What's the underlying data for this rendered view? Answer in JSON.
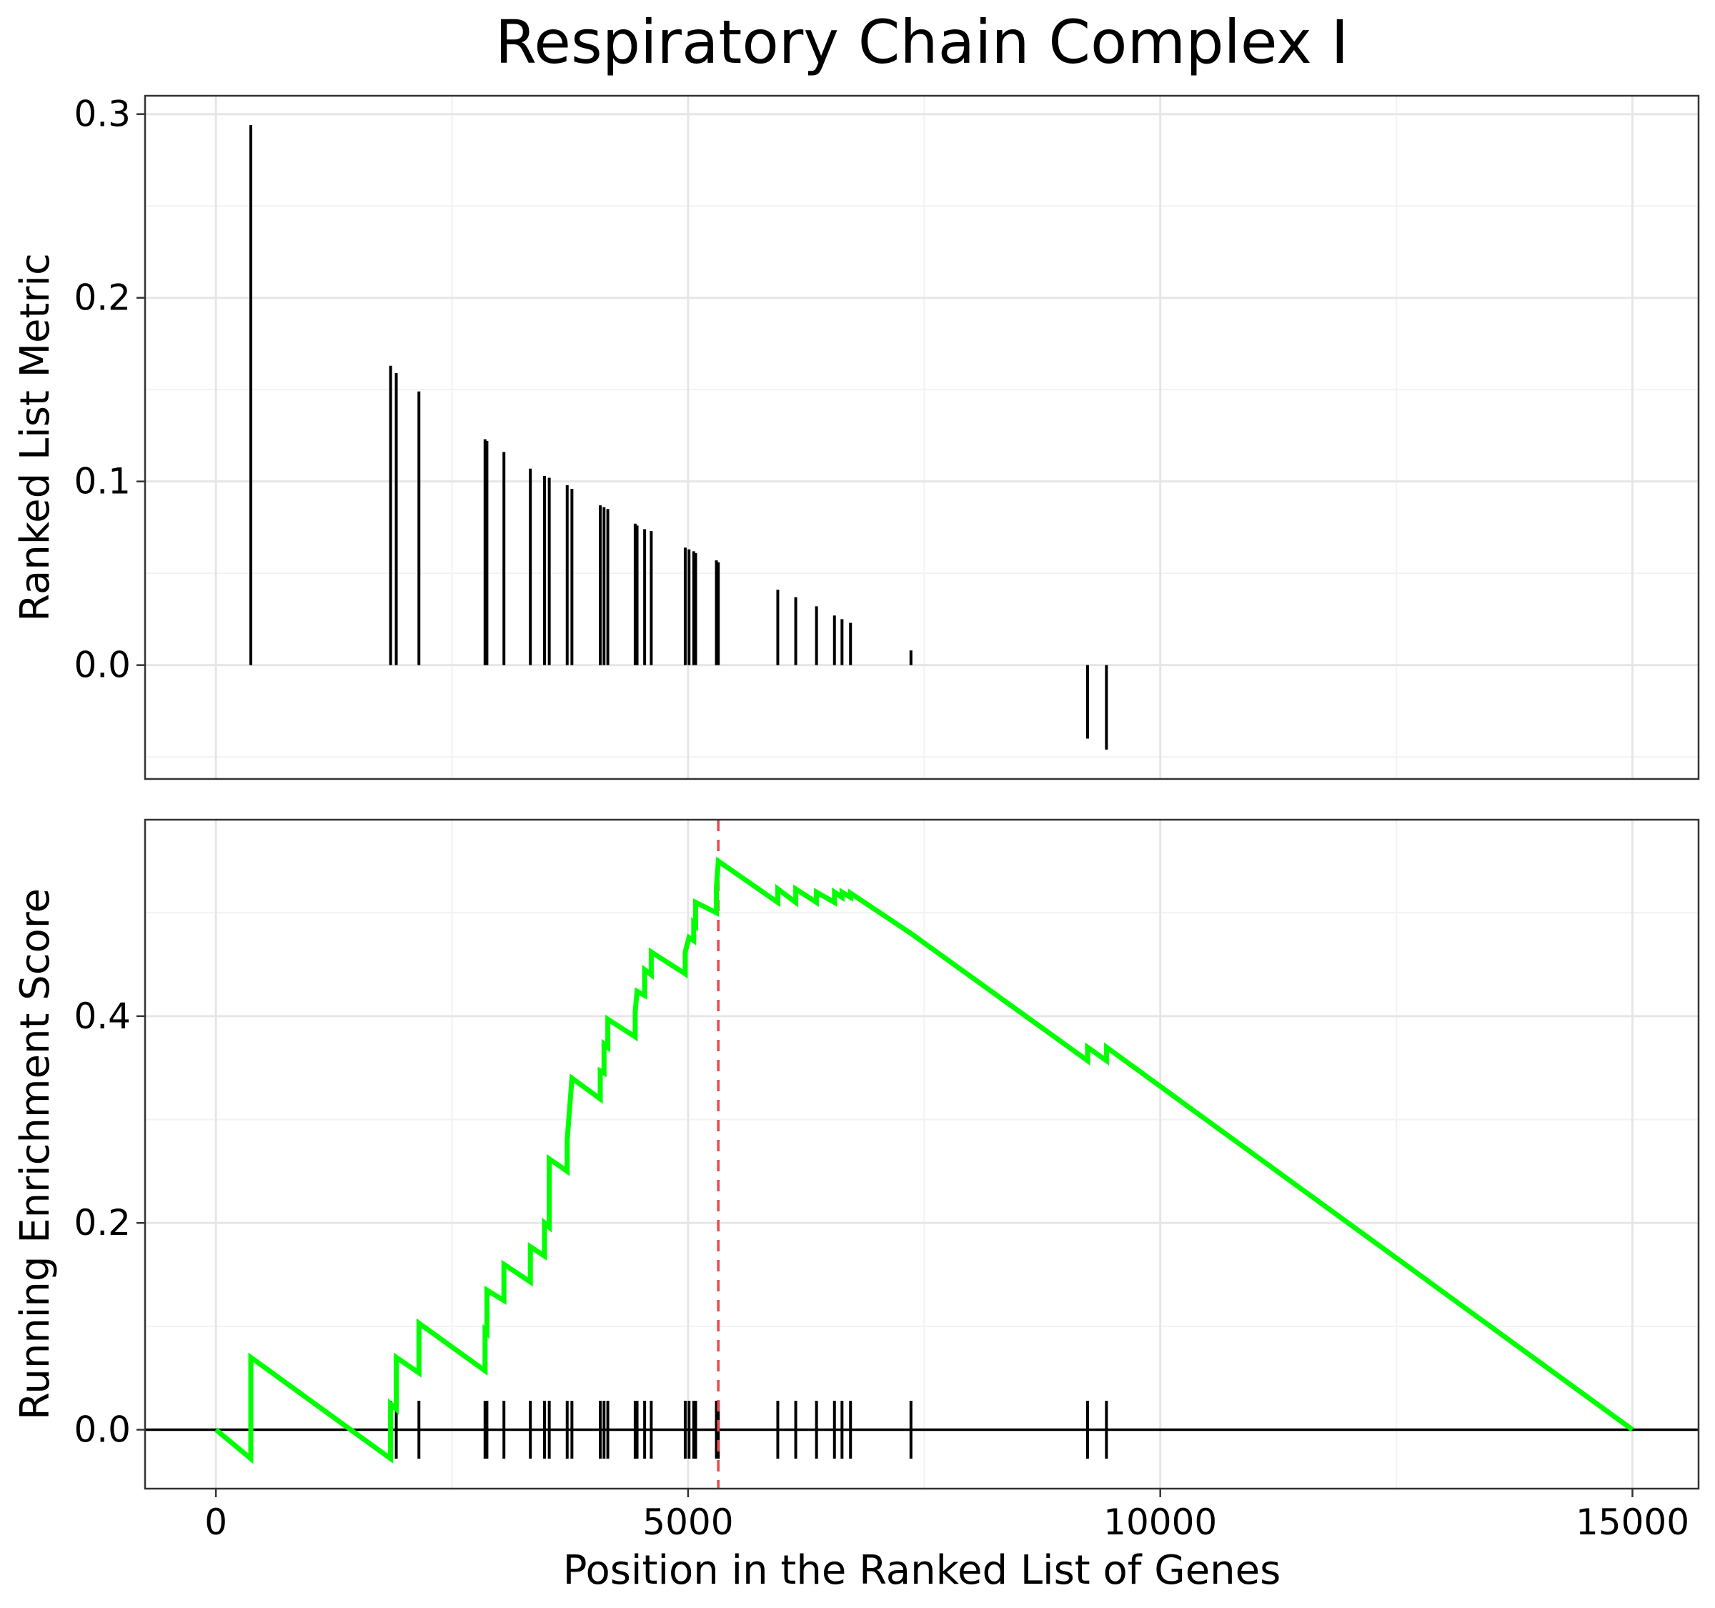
{
  "chart_data": {
    "type": "line",
    "title": "Respiratory Chain Complex I",
    "xlabel": "Position in the Ranked List of Genes",
    "xlim": [
      -750,
      15700
    ],
    "x_ticks": [
      0,
      5000,
      10000,
      15000
    ],
    "x_tick_labels": [
      "0",
      "5000",
      "10000",
      "15000"
    ],
    "grid": true,
    "hits": [
      370,
      1850,
      1910,
      2150,
      2850,
      2870,
      3050,
      3330,
      3480,
      3530,
      3720,
      3770,
      4070,
      4110,
      4150,
      4440,
      4460,
      4540,
      4610,
      4970,
      5010,
      5060,
      5080,
      5300,
      5320,
      5950,
      6140,
      6360,
      6550,
      6630,
      6720,
      7360,
      9230,
      9430
    ],
    "panels": [
      {
        "id": "ranked_metric",
        "type": "bar",
        "ylabel": "Ranked List Metric",
        "ylim": [
          -0.062,
          0.31
        ],
        "y_ticks": [
          0.0,
          0.1,
          0.2,
          0.3
        ],
        "y_tick_labels": [
          "0.0",
          "0.1",
          "0.2",
          "0.3"
        ],
        "values": [
          0.294,
          0.163,
          0.159,
          0.149,
          0.123,
          0.122,
          0.116,
          0.107,
          0.103,
          0.102,
          0.098,
          0.096,
          0.087,
          0.086,
          0.085,
          0.077,
          0.076,
          0.074,
          0.073,
          0.064,
          0.063,
          0.062,
          0.061,
          0.057,
          0.056,
          0.041,
          0.037,
          0.032,
          0.027,
          0.025,
          0.023,
          0.008,
          -0.04,
          -0.046
        ]
      },
      {
        "id": "running_es",
        "type": "line",
        "ylabel": "Running Enrichment Score",
        "ylim": [
          -0.057,
          0.59
        ],
        "y_ticks": [
          0.0,
          0.2,
          0.4
        ],
        "y_tick_labels": [
          "0.0",
          "0.2",
          "0.4"
        ],
        "series": [
          {
            "color": "#00ff00",
            "x": [
              0,
              370,
              370,
              1850,
              1850,
              1910,
              1910,
              2150,
              2150,
              2850,
              2850,
              2870,
              2870,
              3050,
              3050,
              3330,
              3330,
              3480,
              3480,
              3530,
              3530,
              3720,
              3720,
              3770,
              3770,
              4070,
              4070,
              4110,
              4110,
              4150,
              4150,
              4440,
              4440,
              4460,
              4460,
              4540,
              4540,
              4610,
              4610,
              4970,
              4970,
              5010,
              5010,
              5060,
              5060,
              5080,
              5080,
              5300,
              5300,
              5320,
              5320,
              5950,
              5950,
              6140,
              6140,
              6360,
              6360,
              6550,
              6550,
              6630,
              6630,
              6720,
              6720,
              7360,
              7360,
              9230,
              9230,
              9430,
              9430,
              15000
            ],
            "y": [
              0.0,
              -0.028,
              0.07,
              -0.028,
              0.025,
              0.02,
              0.07,
              0.055,
              0.103,
              0.057,
              0.096,
              0.094,
              0.135,
              0.125,
              0.16,
              0.143,
              0.177,
              0.168,
              0.2,
              0.196,
              0.262,
              0.25,
              0.28,
              0.34,
              0.34,
              0.32,
              0.347,
              0.345,
              0.373,
              0.37,
              0.397,
              0.38,
              0.404,
              0.424,
              0.424,
              0.42,
              0.445,
              0.44,
              0.462,
              0.441,
              0.462,
              0.476,
              0.476,
              0.473,
              0.49,
              0.488,
              0.51,
              0.5,
              0.525,
              0.55,
              0.55,
              0.51,
              0.523,
              0.51,
              0.523,
              0.51,
              0.52,
              0.51,
              0.52,
              0.515,
              0.52,
              0.515,
              0.519,
              0.48,
              0.48,
              0.357,
              0.37,
              0.357,
              0.37,
              0.0
            ]
          }
        ],
        "zero_line": 0.0,
        "peak_marker": {
          "x": 5320,
          "color": "#e8474d",
          "style": "dashed"
        }
      }
    ]
  }
}
